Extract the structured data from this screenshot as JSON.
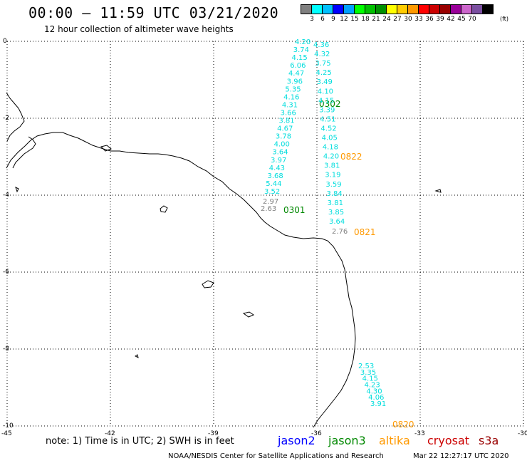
{
  "header": {
    "title": "00:00 – 11:59 UTC 03/21/2020",
    "subtitle": "12 hour collection of altimeter wave heights"
  },
  "scale": {
    "unit": "(ft)",
    "colors": [
      "#808080",
      "#00ffff",
      "#00c0ff",
      "#0000ff",
      "#00a0ff",
      "#00ff00",
      "#00c000",
      "#009000",
      "#ffff00",
      "#ffcc00",
      "#ff9900",
      "#ff0000",
      "#cc0000",
      "#990000",
      "#990099",
      "#cc66cc",
      "#7a4fa0",
      "#000000"
    ],
    "labels": [
      "3",
      "6",
      "9",
      "12",
      "15",
      "18",
      "21",
      "24",
      "27",
      "30",
      "33",
      "36",
      "39",
      "42",
      "45",
      "70"
    ]
  },
  "map": {
    "lon_ticks": [
      "-45",
      "-42",
      "-39",
      "-36",
      "-33",
      "-30"
    ],
    "lat_ticks": [
      "0",
      "-2",
      "-4",
      "-6",
      "-8",
      "-10"
    ]
  },
  "tracks": [
    {
      "satellite": "jason3",
      "color": "#00dddd",
      "time_label": "0302",
      "time_color": "#008800",
      "heights": [
        "4.20",
        "3.74",
        "4.15",
        "6.06",
        "4.47",
        "3.96",
        "5.35",
        "4.16",
        "4.31",
        "3.66",
        "3.81",
        "4.67",
        "3.78",
        "4.00",
        "3.64",
        "3.97",
        "4.43",
        "3.68",
        "5.44",
        "3.52"
      ]
    },
    {
      "satellite": "jason3",
      "color": "#00dddd",
      "time_label": "0301",
      "time_color": "#008800",
      "heights": [
        "2.97",
        "2.63"
      ],
      "gray": true
    },
    {
      "satellite": "altika",
      "color": "#00dddd",
      "time_label": "0822",
      "time_color": "#ff9900",
      "heights": [
        "4.36",
        "4.32",
        "3.75",
        "4.25",
        "3.49",
        "4.10",
        "4.15",
        "3.39",
        "4.51",
        "4.52",
        "4.05",
        "4.18",
        "4.20",
        "3.81",
        "3.19",
        "3.59",
        "3.84",
        "3.81",
        "3.85",
        "3.64"
      ]
    },
    {
      "satellite": "altika",
      "color": "#00dddd",
      "time_label": "0821",
      "time_color": "#ff9900",
      "heights": [
        "2.76"
      ],
      "gray": true
    },
    {
      "satellite": "altika",
      "color": "#00dddd",
      "time_label": "0820",
      "time_color": "#ff9900",
      "heights": [
        "2.53",
        "3.35",
        "4.15",
        "4.23",
        "4.30",
        "4.06",
        "3.91"
      ]
    }
  ],
  "footer": {
    "note": "note:  1) Time is in UTC;  2) SWH is in feet",
    "legend": [
      {
        "label": "jason2",
        "color": "#0000ff"
      },
      {
        "label": "jason3",
        "color": "#008800"
      },
      {
        "label": "altika",
        "color": "#ff9900"
      },
      {
        "label": "cryosat",
        "color": "#cc0000"
      },
      {
        "label": "s3a",
        "color": "#990000"
      }
    ],
    "credit": "NOAA/NESDIS Center for Satellite Applications and Research",
    "timestamp": "Mar 22 12:27:17 UTC 2020"
  }
}
